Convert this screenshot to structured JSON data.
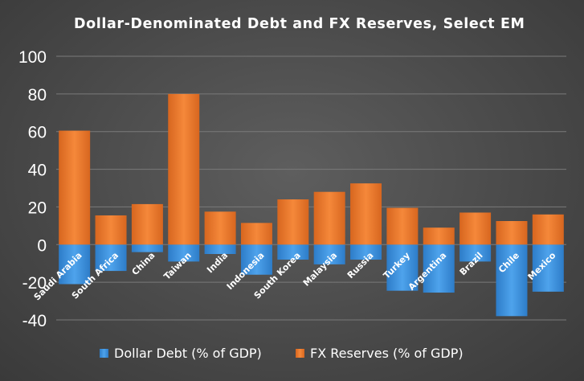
{
  "chart_data": {
    "type": "bar",
    "title": "Dollar-Denominated Debt and FX Reserves, Select EM",
    "categories": [
      "Saudi Arabia",
      "South Africa",
      "China",
      "Taiwan",
      "India",
      "Indonesia",
      "South Korea",
      "Malaysia",
      "Russia",
      "Turkey",
      "Argentina",
      "Brazil",
      "Chile",
      "Mexico"
    ],
    "series": [
      {
        "name": "Dollar Debt (% of GDP)",
        "color": "#3a8fd8",
        "values": [
          -21,
          -14,
          -4,
          -9,
          -5,
          -16,
          -8,
          -10.5,
          -8,
          -24.5,
          -25.5,
          -9,
          -38,
          -25
        ]
      },
      {
        "name": "FX Reserves (% of GDP)",
        "color": "#f07c30",
        "values": [
          60.5,
          15.5,
          21.5,
          80,
          17.5,
          11.5,
          24,
          28,
          32.5,
          19.5,
          9,
          17,
          12.5,
          16
        ]
      }
    ],
    "yticks": [
      "100",
      "80",
      "60",
      "40",
      "20",
      "0",
      "-20",
      "-40"
    ],
    "ylim": [
      -40,
      100
    ],
    "xlabel": "",
    "ylabel": "",
    "grid": true,
    "legend": "bottom"
  }
}
